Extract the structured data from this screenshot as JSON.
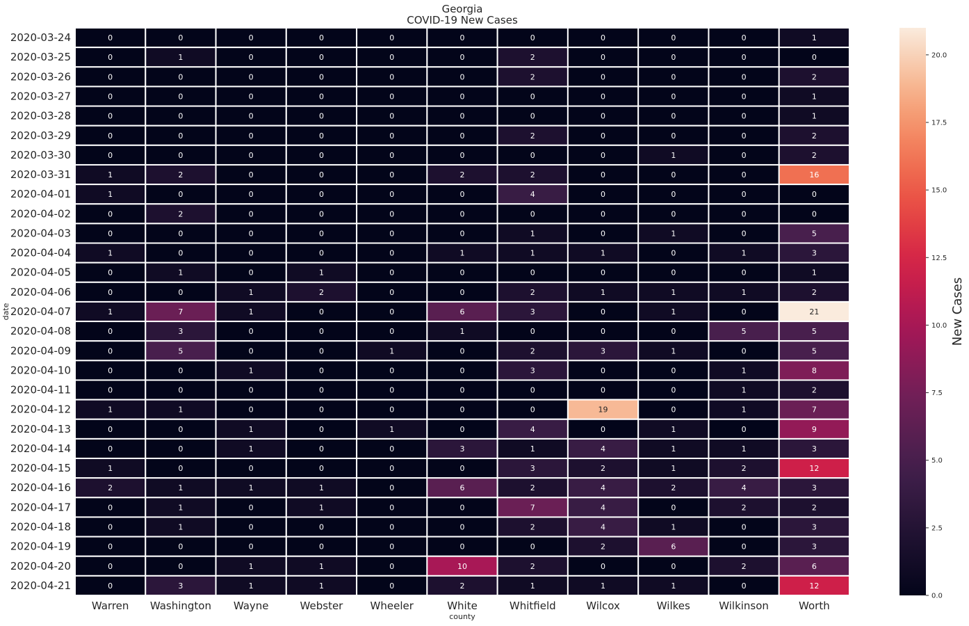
{
  "chart_data": {
    "type": "heatmap",
    "title": "Georgia",
    "subtitle": "COVID-19 New Cases",
    "xlabel": "county",
    "ylabel": "date",
    "colorbar_label": "New Cases",
    "colorbar_range": [
      0,
      21
    ],
    "colorbar_ticks": [
      "0.0",
      "2.5",
      "5.0",
      "7.5",
      "10.0",
      "12.5",
      "15.0",
      "17.5",
      "20.0"
    ],
    "colormap": "rocket",
    "columns": [
      "Warren",
      "Washington",
      "Wayne",
      "Webster",
      "Wheeler",
      "White",
      "Whitfield",
      "Wilcox",
      "Wilkes",
      "Wilkinson",
      "Worth"
    ],
    "rows": [
      "2020-03-24",
      "2020-03-25",
      "2020-03-26",
      "2020-03-27",
      "2020-03-28",
      "2020-03-29",
      "2020-03-30",
      "2020-03-31",
      "2020-04-01",
      "2020-04-02",
      "2020-04-03",
      "2020-04-04",
      "2020-04-05",
      "2020-04-06",
      "2020-04-07",
      "2020-04-08",
      "2020-04-09",
      "2020-04-10",
      "2020-04-11",
      "2020-04-12",
      "2020-04-13",
      "2020-04-14",
      "2020-04-15",
      "2020-04-16",
      "2020-04-17",
      "2020-04-18",
      "2020-04-19",
      "2020-04-20",
      "2020-04-21"
    ],
    "values": [
      [
        0,
        0,
        0,
        0,
        0,
        0,
        0,
        0,
        0,
        0,
        1
      ],
      [
        0,
        1,
        0,
        0,
        0,
        0,
        2,
        0,
        0,
        0,
        0
      ],
      [
        0,
        0,
        0,
        0,
        0,
        0,
        2,
        0,
        0,
        0,
        2
      ],
      [
        0,
        0,
        0,
        0,
        0,
        0,
        0,
        0,
        0,
        0,
        1
      ],
      [
        0,
        0,
        0,
        0,
        0,
        0,
        0,
        0,
        0,
        0,
        1
      ],
      [
        0,
        0,
        0,
        0,
        0,
        0,
        2,
        0,
        0,
        0,
        2
      ],
      [
        0,
        0,
        0,
        0,
        0,
        0,
        0,
        0,
        1,
        0,
        2
      ],
      [
        1,
        2,
        0,
        0,
        0,
        2,
        2,
        0,
        0,
        0,
        16
      ],
      [
        1,
        0,
        0,
        0,
        0,
        0,
        4,
        0,
        0,
        0,
        0
      ],
      [
        0,
        2,
        0,
        0,
        0,
        0,
        0,
        0,
        0,
        0,
        0
      ],
      [
        0,
        0,
        0,
        0,
        0,
        0,
        1,
        0,
        1,
        0,
        5
      ],
      [
        1,
        0,
        0,
        0,
        0,
        1,
        1,
        1,
        0,
        1,
        3
      ],
      [
        0,
        1,
        0,
        1,
        0,
        0,
        0,
        0,
        0,
        0,
        1
      ],
      [
        0,
        0,
        1,
        2,
        0,
        0,
        2,
        1,
        1,
        1,
        2
      ],
      [
        1,
        7,
        1,
        0,
        0,
        6,
        3,
        0,
        1,
        0,
        21
      ],
      [
        0,
        3,
        0,
        0,
        0,
        1,
        0,
        0,
        0,
        5,
        5
      ],
      [
        0,
        5,
        0,
        0,
        1,
        0,
        2,
        3,
        1,
        0,
        5
      ],
      [
        0,
        0,
        1,
        0,
        0,
        0,
        3,
        0,
        0,
        1,
        8
      ],
      [
        0,
        0,
        0,
        0,
        0,
        0,
        0,
        0,
        0,
        1,
        2
      ],
      [
        1,
        1,
        0,
        0,
        0,
        0,
        0,
        19,
        0,
        1,
        7
      ],
      [
        0,
        0,
        1,
        0,
        1,
        0,
        4,
        0,
        1,
        0,
        9
      ],
      [
        0,
        0,
        1,
        0,
        0,
        3,
        1,
        4,
        1,
        1,
        3
      ],
      [
        1,
        0,
        0,
        0,
        0,
        0,
        3,
        2,
        1,
        2,
        12
      ],
      [
        2,
        1,
        1,
        1,
        0,
        6,
        2,
        4,
        2,
        4,
        3
      ],
      [
        0,
        1,
        0,
        1,
        0,
        0,
        7,
        4,
        0,
        2,
        2
      ],
      [
        0,
        1,
        0,
        0,
        0,
        0,
        2,
        4,
        1,
        0,
        3
      ],
      [
        0,
        0,
        0,
        0,
        0,
        0,
        0,
        2,
        6,
        0,
        3
      ],
      [
        0,
        0,
        1,
        1,
        0,
        10,
        2,
        0,
        0,
        2,
        6
      ],
      [
        0,
        3,
        1,
        1,
        0,
        2,
        1,
        1,
        1,
        0,
        12
      ]
    ],
    "annotate": true,
    "grid_lines": "white"
  }
}
